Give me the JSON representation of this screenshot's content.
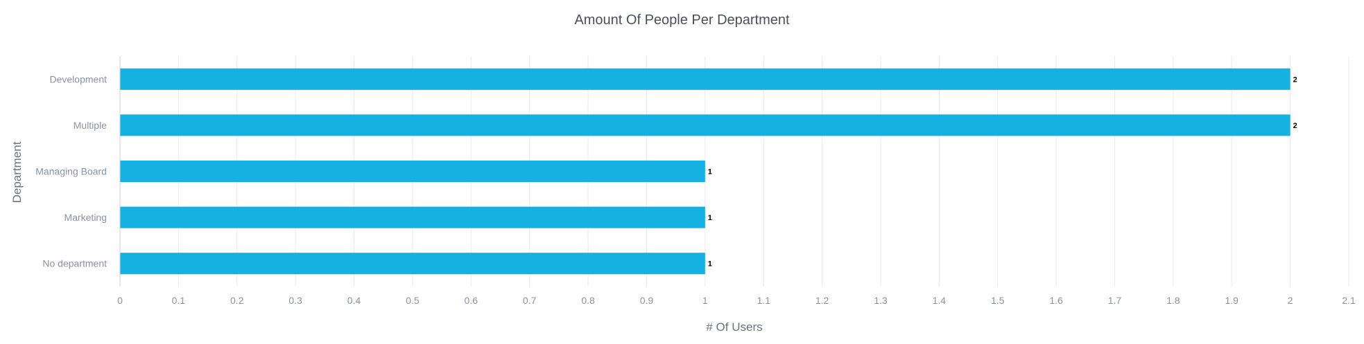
{
  "chart_data": {
    "type": "bar",
    "orientation": "horizontal",
    "title": "Amount Of People Per Department",
    "xlabel": "# Of Users",
    "ylabel": "Department",
    "categories": [
      "Development",
      "Multiple",
      "Managing Board",
      "Marketing",
      "No department"
    ],
    "values": [
      2,
      2,
      1,
      1,
      1
    ],
    "data_labels": [
      "2",
      "2",
      "1",
      "1",
      "1"
    ],
    "xlim": [
      0,
      2.1
    ],
    "x_ticks": [
      "0",
      "0.1",
      "0.2",
      "0.3",
      "0.4",
      "0.5",
      "0.6",
      "0.7",
      "0.8",
      "0.9",
      "1",
      "1.1",
      "1.2",
      "1.3",
      "1.4",
      "1.5",
      "1.6",
      "1.7",
      "1.8",
      "1.9",
      "2",
      "2.1"
    ],
    "grid": true,
    "legend": "none",
    "bar_color": "#14b1e2"
  }
}
